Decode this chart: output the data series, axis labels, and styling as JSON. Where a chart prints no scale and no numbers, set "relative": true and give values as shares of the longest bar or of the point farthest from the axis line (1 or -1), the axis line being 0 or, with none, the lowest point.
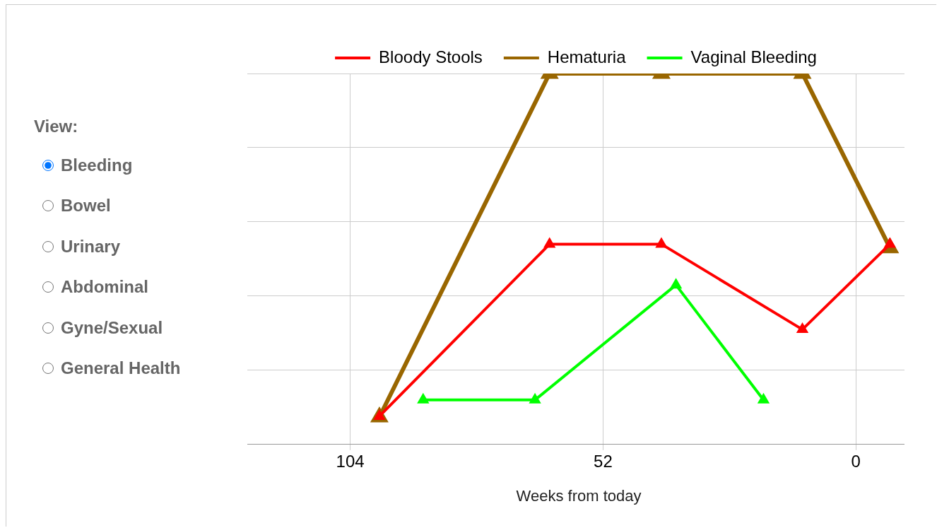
{
  "chart_data": {
    "type": "line",
    "xlabel": "Weeks from today",
    "relative": true,
    "xlim": [
      124,
      -10
    ],
    "xticks": [
      104,
      52,
      0
    ],
    "grid": true,
    "legend": "top",
    "marker": "triangle",
    "series": [
      {
        "name": "Bloody Stools",
        "color": "#ff0000",
        "x": [
          98,
          63,
          40,
          11,
          -7
        ],
        "values": [
          0.076,
          0.54,
          0.54,
          0.31,
          0.54
        ]
      },
      {
        "name": "Hematuria",
        "color": "#996600",
        "x": [
          98,
          63,
          40,
          11,
          -7
        ],
        "values": [
          0.074,
          1,
          1,
          1,
          0.53
        ]
      },
      {
        "name": "Vaginal Bleeding",
        "color": "#00ff00",
        "x": [
          89,
          66,
          37,
          19
        ],
        "values": [
          0.12,
          0.12,
          0.43,
          0.12
        ]
      }
    ],
    "annotations": [
      "View:",
      "Bleeding",
      "Bowel",
      "Urinary",
      "Abdominal",
      "Gyne/Sexual",
      "General Health"
    ]
  }
}
